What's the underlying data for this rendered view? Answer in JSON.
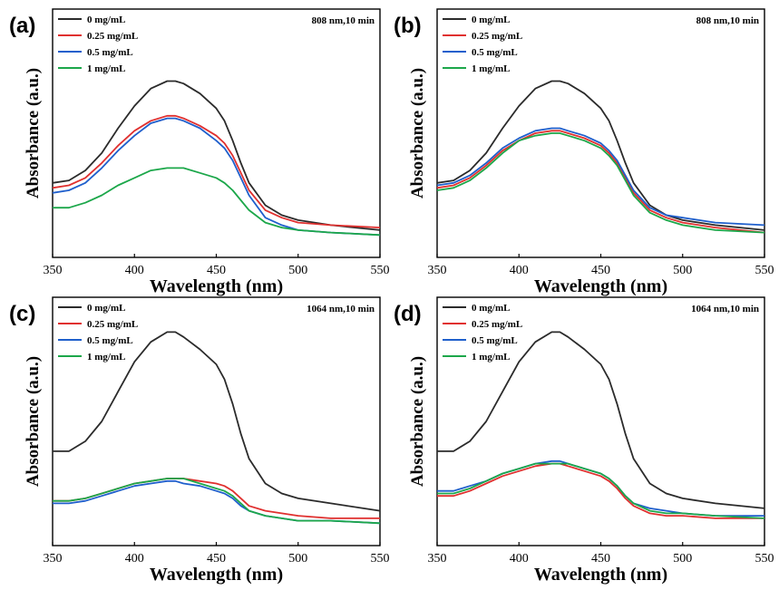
{
  "chart_data": [
    {
      "panel": "(a)",
      "type": "line",
      "annotation": "808 nm,10 min",
      "xlabel": "Wavelength (nm)",
      "ylabel": "Absorbance (a.u.)",
      "xlim": [
        350,
        550
      ],
      "xticks": [
        350,
        400,
        450,
        500,
        550
      ],
      "ylim": [
        0,
        1
      ],
      "yticks_shown": false,
      "legend_position": "top-left",
      "series": [
        {
          "name": "0 mg/mL",
          "color": "#2b2b2b",
          "x": [
            350,
            360,
            370,
            380,
            390,
            400,
            410,
            420,
            425,
            430,
            440,
            450,
            455,
            460,
            465,
            470,
            480,
            490,
            500,
            520,
            550
          ],
          "y": [
            0.3,
            0.31,
            0.35,
            0.42,
            0.52,
            0.61,
            0.68,
            0.71,
            0.71,
            0.7,
            0.66,
            0.6,
            0.55,
            0.47,
            0.38,
            0.3,
            0.21,
            0.17,
            0.15,
            0.13,
            0.11
          ]
        },
        {
          "name": "0.25 mg/mL",
          "color": "#e0302f",
          "x": [
            350,
            360,
            370,
            380,
            390,
            400,
            410,
            420,
            425,
            430,
            440,
            450,
            455,
            460,
            465,
            470,
            480,
            490,
            500,
            520,
            550
          ],
          "y": [
            0.28,
            0.29,
            0.32,
            0.38,
            0.45,
            0.51,
            0.55,
            0.57,
            0.57,
            0.56,
            0.53,
            0.49,
            0.46,
            0.41,
            0.34,
            0.27,
            0.19,
            0.16,
            0.14,
            0.13,
            0.12
          ]
        },
        {
          "name": "0.5 mg/mL",
          "color": "#1f5fcc",
          "x": [
            350,
            360,
            370,
            380,
            390,
            400,
            410,
            420,
            425,
            430,
            440,
            450,
            455,
            460,
            465,
            470,
            480,
            490,
            500,
            520,
            550
          ],
          "y": [
            0.26,
            0.27,
            0.3,
            0.36,
            0.43,
            0.49,
            0.54,
            0.56,
            0.56,
            0.55,
            0.52,
            0.47,
            0.44,
            0.39,
            0.32,
            0.25,
            0.16,
            0.13,
            0.11,
            0.1,
            0.09
          ]
        },
        {
          "name": "1 mg/mL",
          "color": "#1ca74a",
          "x": [
            350,
            360,
            370,
            380,
            390,
            400,
            410,
            420,
            425,
            430,
            440,
            450,
            455,
            460,
            465,
            470,
            480,
            490,
            500,
            520,
            550
          ],
          "y": [
            0.2,
            0.2,
            0.22,
            0.25,
            0.29,
            0.32,
            0.35,
            0.36,
            0.36,
            0.36,
            0.34,
            0.32,
            0.3,
            0.27,
            0.23,
            0.19,
            0.14,
            0.12,
            0.11,
            0.1,
            0.09
          ]
        }
      ]
    },
    {
      "panel": "(b)",
      "type": "line",
      "annotation": "808 nm,10 min",
      "xlabel": "Wavelength (nm)",
      "ylabel": "Absorbance (a.u.)",
      "xlim": [
        350,
        550
      ],
      "xticks": [
        350,
        400,
        450,
        500,
        550
      ],
      "ylim": [
        0,
        1
      ],
      "yticks_shown": false,
      "legend_position": "top-left",
      "series": [
        {
          "name": "0 mg/mL",
          "color": "#2b2b2b",
          "x": [
            350,
            360,
            370,
            380,
            390,
            400,
            410,
            420,
            425,
            430,
            440,
            450,
            455,
            460,
            465,
            470,
            480,
            490,
            500,
            520,
            550
          ],
          "y": [
            0.3,
            0.31,
            0.35,
            0.42,
            0.52,
            0.61,
            0.68,
            0.71,
            0.71,
            0.7,
            0.66,
            0.6,
            0.55,
            0.47,
            0.38,
            0.3,
            0.21,
            0.17,
            0.15,
            0.13,
            0.11
          ]
        },
        {
          "name": "0.25 mg/mL",
          "color": "#e0302f",
          "x": [
            350,
            360,
            370,
            380,
            390,
            400,
            410,
            420,
            425,
            430,
            440,
            450,
            455,
            460,
            465,
            470,
            480,
            490,
            500,
            520,
            550
          ],
          "y": [
            0.28,
            0.29,
            0.32,
            0.37,
            0.43,
            0.47,
            0.5,
            0.51,
            0.51,
            0.5,
            0.48,
            0.45,
            0.42,
            0.38,
            0.32,
            0.26,
            0.19,
            0.16,
            0.14,
            0.12,
            0.1
          ]
        },
        {
          "name": "0.5 mg/mL",
          "color": "#1f5fcc",
          "x": [
            350,
            360,
            370,
            380,
            390,
            400,
            410,
            420,
            425,
            430,
            440,
            450,
            455,
            460,
            465,
            470,
            480,
            490,
            500,
            520,
            550
          ],
          "y": [
            0.29,
            0.3,
            0.33,
            0.38,
            0.44,
            0.48,
            0.51,
            0.52,
            0.52,
            0.51,
            0.49,
            0.46,
            0.43,
            0.39,
            0.33,
            0.27,
            0.2,
            0.17,
            0.16,
            0.14,
            0.13
          ]
        },
        {
          "name": "1 mg/mL",
          "color": "#1ca74a",
          "x": [
            350,
            360,
            370,
            380,
            390,
            400,
            410,
            420,
            425,
            430,
            440,
            450,
            455,
            460,
            465,
            470,
            480,
            490,
            500,
            520,
            550
          ],
          "y": [
            0.27,
            0.28,
            0.31,
            0.36,
            0.42,
            0.47,
            0.49,
            0.5,
            0.5,
            0.49,
            0.47,
            0.44,
            0.41,
            0.37,
            0.31,
            0.25,
            0.18,
            0.15,
            0.13,
            0.11,
            0.1
          ]
        }
      ]
    },
    {
      "panel": "(c)",
      "type": "line",
      "annotation": "1064 nm,10 min",
      "xlabel": "Wavelength (nm)",
      "ylabel": "Absorbance (a.u.)",
      "xlim": [
        350,
        550
      ],
      "xticks": [
        350,
        400,
        450,
        500,
        550
      ],
      "ylim": [
        0,
        1
      ],
      "yticks_shown": false,
      "legend_position": "top-left",
      "series": [
        {
          "name": "0 mg/mL",
          "color": "#2b2b2b",
          "x": [
            350,
            360,
            370,
            380,
            390,
            400,
            410,
            420,
            425,
            430,
            440,
            450,
            455,
            460,
            465,
            470,
            480,
            490,
            500,
            520,
            550
          ],
          "y": [
            0.38,
            0.38,
            0.42,
            0.5,
            0.62,
            0.74,
            0.82,
            0.86,
            0.86,
            0.84,
            0.79,
            0.73,
            0.67,
            0.57,
            0.45,
            0.35,
            0.25,
            0.21,
            0.19,
            0.17,
            0.14
          ]
        },
        {
          "name": "0.25 mg/mL",
          "color": "#e0302f",
          "x": [
            350,
            360,
            370,
            380,
            390,
            400,
            410,
            420,
            425,
            430,
            440,
            450,
            455,
            460,
            465,
            470,
            480,
            490,
            500,
            520,
            550
          ],
          "y": [
            0.18,
            0.18,
            0.19,
            0.21,
            0.23,
            0.25,
            0.26,
            0.27,
            0.27,
            0.27,
            0.26,
            0.25,
            0.24,
            0.22,
            0.19,
            0.16,
            0.14,
            0.13,
            0.12,
            0.11,
            0.11
          ]
        },
        {
          "name": "0.5 mg/mL",
          "color": "#1f5fcc",
          "x": [
            350,
            360,
            370,
            380,
            390,
            400,
            410,
            420,
            425,
            430,
            440,
            450,
            455,
            460,
            465,
            470,
            480,
            490,
            500,
            520,
            550
          ],
          "y": [
            0.17,
            0.17,
            0.18,
            0.2,
            0.22,
            0.24,
            0.25,
            0.26,
            0.26,
            0.25,
            0.24,
            0.22,
            0.21,
            0.19,
            0.16,
            0.14,
            0.12,
            0.11,
            0.1,
            0.1,
            0.09
          ]
        },
        {
          "name": "1 mg/mL",
          "color": "#1ca74a",
          "x": [
            350,
            360,
            370,
            380,
            390,
            400,
            410,
            420,
            425,
            430,
            440,
            450,
            455,
            460,
            465,
            470,
            480,
            490,
            500,
            520,
            550
          ],
          "y": [
            0.18,
            0.18,
            0.19,
            0.21,
            0.23,
            0.25,
            0.26,
            0.27,
            0.27,
            0.27,
            0.25,
            0.23,
            0.22,
            0.2,
            0.17,
            0.14,
            0.12,
            0.11,
            0.1,
            0.1,
            0.09
          ]
        }
      ]
    },
    {
      "panel": "(d)",
      "type": "line",
      "annotation": "1064 nm,10 min",
      "xlabel": "Wavelength (nm)",
      "ylabel": "Absorbance (a.u.)",
      "xlim": [
        350,
        550
      ],
      "xticks": [
        350,
        400,
        450,
        500,
        550
      ],
      "ylim": [
        0,
        1
      ],
      "yticks_shown": false,
      "legend_position": "top-left",
      "series": [
        {
          "name": "0 mg/mL",
          "color": "#2b2b2b",
          "x": [
            350,
            360,
            370,
            380,
            390,
            400,
            410,
            420,
            425,
            430,
            440,
            450,
            455,
            460,
            465,
            470,
            480,
            490,
            500,
            520,
            550
          ],
          "y": [
            0.38,
            0.38,
            0.42,
            0.5,
            0.62,
            0.74,
            0.82,
            0.86,
            0.86,
            0.84,
            0.79,
            0.73,
            0.67,
            0.57,
            0.45,
            0.35,
            0.25,
            0.21,
            0.19,
            0.17,
            0.15
          ]
        },
        {
          "name": "0.25 mg/mL",
          "color": "#e0302f",
          "x": [
            350,
            360,
            370,
            380,
            390,
            400,
            410,
            420,
            425,
            430,
            440,
            450,
            455,
            460,
            465,
            470,
            480,
            490,
            500,
            520,
            550
          ],
          "y": [
            0.2,
            0.2,
            0.22,
            0.25,
            0.28,
            0.3,
            0.32,
            0.33,
            0.33,
            0.32,
            0.3,
            0.28,
            0.26,
            0.23,
            0.19,
            0.16,
            0.13,
            0.12,
            0.12,
            0.11,
            0.11
          ]
        },
        {
          "name": "0.5 mg/mL",
          "color": "#1f5fcc",
          "x": [
            350,
            360,
            370,
            380,
            390,
            400,
            410,
            420,
            425,
            430,
            440,
            450,
            455,
            460,
            465,
            470,
            480,
            490,
            500,
            520,
            550
          ],
          "y": [
            0.22,
            0.22,
            0.24,
            0.26,
            0.29,
            0.31,
            0.33,
            0.34,
            0.34,
            0.33,
            0.31,
            0.29,
            0.27,
            0.24,
            0.2,
            0.17,
            0.15,
            0.14,
            0.13,
            0.12,
            0.12
          ]
        },
        {
          "name": "1 mg/mL",
          "color": "#1ca74a",
          "x": [
            350,
            360,
            370,
            380,
            390,
            400,
            410,
            420,
            425,
            430,
            440,
            450,
            455,
            460,
            465,
            470,
            480,
            490,
            500,
            520,
            550
          ],
          "y": [
            0.21,
            0.21,
            0.23,
            0.26,
            0.29,
            0.31,
            0.33,
            0.33,
            0.33,
            0.33,
            0.31,
            0.29,
            0.27,
            0.24,
            0.2,
            0.17,
            0.14,
            0.13,
            0.13,
            0.12,
            0.11
          ]
        }
      ]
    }
  ]
}
